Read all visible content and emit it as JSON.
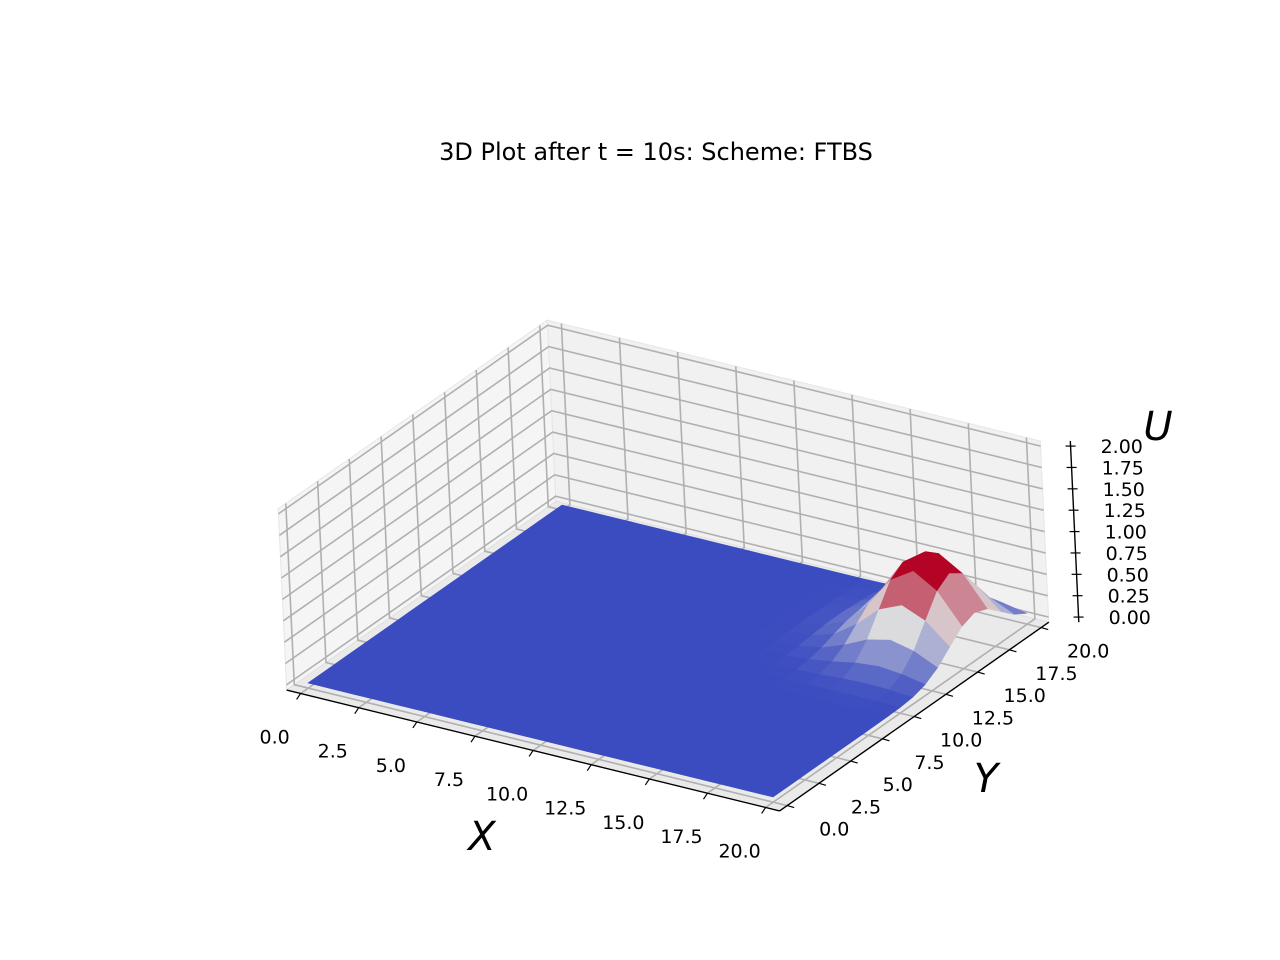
{
  "chart_data": {
    "type": "surface3d",
    "title": "3D Plot after t = 10s: Scheme: FTBS",
    "xlabel": "X",
    "ylabel": "Y",
    "zlabel": "U",
    "xlim": [
      0,
      20
    ],
    "ylim": [
      0,
      20
    ],
    "zlim": [
      0,
      2
    ],
    "x_ticks": [
      "0.0",
      "2.5",
      "5.0",
      "7.5",
      "10.0",
      "12.5",
      "15.0",
      "17.5",
      "20.0"
    ],
    "y_ticks": [
      "0.0",
      "2.5",
      "5.0",
      "7.5",
      "10.0",
      "12.5",
      "15.0",
      "17.5",
      "20.0"
    ],
    "z_ticks": [
      "0.00",
      "0.25",
      "0.50",
      "0.75",
      "1.00",
      "1.25",
      "1.50",
      "1.75",
      "2.00"
    ],
    "colormap": "coolwarm",
    "colors": {
      "low": "#3b4cc0",
      "mid": "#dddddd",
      "high": "#b40426"
    },
    "surface": {
      "grid_step": 1,
      "baseline": 0,
      "peak": {
        "x": 18,
        "y": 16,
        "value": 1.07,
        "sigma_x": 1.6,
        "sigma_y": 2.0
      }
    },
    "grid": true
  }
}
